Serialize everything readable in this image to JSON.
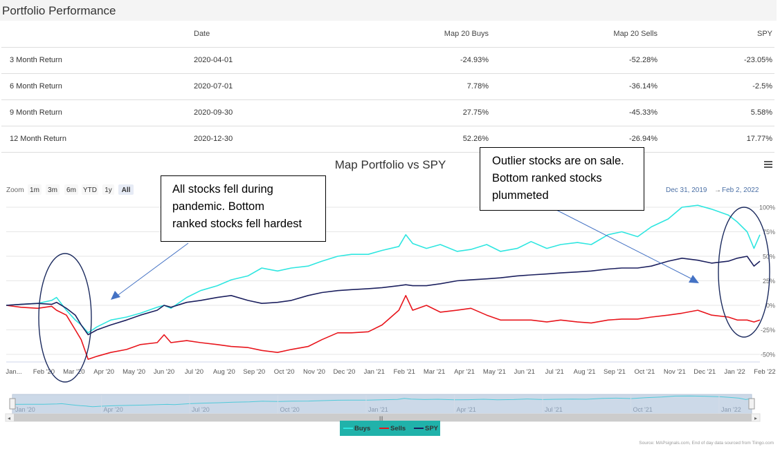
{
  "header": {
    "title": "Portfolio Performance"
  },
  "table": {
    "columns": [
      "",
      "Date",
      "Map 20 Buys",
      "Map 20 Sells",
      "SPY"
    ],
    "rows": [
      [
        "3 Month Return",
        "2020-04-01",
        "-24.93%",
        "-52.28%",
        "-23.05%"
      ],
      [
        "6 Month Return",
        "2020-07-01",
        "7.78%",
        "-36.14%",
        "-2.5%"
      ],
      [
        "9 Month Return",
        "2020-09-30",
        "27.75%",
        "-45.33%",
        "5.58%"
      ],
      [
        "12 Month Return",
        "2020-12-30",
        "52.26%",
        "-26.94%",
        "17.77%"
      ]
    ]
  },
  "zoom": {
    "label": "Zoom",
    "buttons": [
      "1m",
      "3m",
      "6m",
      "YTD",
      "1y",
      "All"
    ],
    "active": "All"
  },
  "date_range": {
    "from": "Dec 31, 2019",
    "arrow": "→",
    "to": "Feb 2, 2022"
  },
  "navigator_labels": [
    "Jan '20",
    "Apr '20",
    "Jul '20",
    "Oct '20",
    "Jan '21",
    "Apr '21",
    "Jul '21",
    "Oct '21",
    "Jan '22"
  ],
  "callouts": {
    "left": "All stocks fell during\npandemic. Bottom\nranked stocks fell hardest",
    "right": "Outlier stocks are on sale.\nBottom ranked stocks\nplummeted"
  },
  "credits": "Source: MAPsignals.com, End of day data sourced from Tiingo.com",
  "colors": {
    "buys": "#2ee6e0",
    "sells": "#e8141b",
    "spy": "#1b1f5e",
    "navigator_fill": "#ccd9e8",
    "active_zoom": "#e6ebf5"
  },
  "chart_data": {
    "type": "line",
    "title": "Map Portfolio vs SPY",
    "xlabel": "",
    "ylabel": "",
    "ylim": [
      -55,
      105
    ],
    "y_ticks": [
      100,
      75,
      50,
      25,
      0,
      -25,
      -50
    ],
    "y_tick_labels": [
      "100%",
      "75%",
      "50%",
      "25%",
      "0%",
      "-25%",
      "-50%"
    ],
    "x_ticks": [
      "Jan...",
      "Feb '20",
      "Mar '20",
      "Apr '20",
      "May '20",
      "Jun '20",
      "Jul '20",
      "Aug '20",
      "Sep '20",
      "Oct '20",
      "Nov '20",
      "Dec '20",
      "Jan '21",
      "Feb '21",
      "Mar '21",
      "Apr '21",
      "May '21",
      "Jun '21",
      "Jul '21",
      "Aug '21",
      "Sep '21",
      "Oct '21",
      "Nov '21",
      "Dec '21",
      "Jan '22",
      "Feb '22"
    ],
    "x": [
      "2019-12-31",
      "2020-01-15",
      "2020-02-01",
      "2020-02-15",
      "2020-02-20",
      "2020-03-01",
      "2020-03-10",
      "2020-03-16",
      "2020-03-23",
      "2020-04-01",
      "2020-04-15",
      "2020-05-01",
      "2020-05-15",
      "2020-06-01",
      "2020-06-08",
      "2020-06-15",
      "2020-07-01",
      "2020-07-15",
      "2020-08-01",
      "2020-08-15",
      "2020-09-01",
      "2020-09-15",
      "2020-10-01",
      "2020-10-15",
      "2020-11-01",
      "2020-11-15",
      "2020-12-01",
      "2020-12-15",
      "2021-01-01",
      "2021-01-15",
      "2021-02-01",
      "2021-02-08",
      "2021-02-15",
      "2021-03-01",
      "2021-03-15",
      "2021-04-01",
      "2021-04-15",
      "2021-05-01",
      "2021-05-15",
      "2021-06-01",
      "2021-06-15",
      "2021-07-01",
      "2021-07-15",
      "2021-08-01",
      "2021-08-15",
      "2021-09-01",
      "2021-09-15",
      "2021-10-01",
      "2021-10-15",
      "2021-11-01",
      "2021-11-15",
      "2021-12-01",
      "2021-12-15",
      "2022-01-01",
      "2022-01-10",
      "2022-01-20",
      "2022-01-27",
      "2022-02-02"
    ],
    "series": [
      {
        "name": "Buys",
        "values": [
          0,
          1,
          2,
          5,
          8,
          -5,
          -15,
          -20,
          -28,
          -22,
          -15,
          -12,
          -8,
          -2,
          0,
          -3,
          8,
          15,
          20,
          26,
          30,
          38,
          35,
          38,
          40,
          45,
          50,
          52,
          52,
          56,
          60,
          72,
          63,
          58,
          62,
          55,
          57,
          62,
          55,
          58,
          65,
          58,
          62,
          64,
          62,
          72,
          75,
          70,
          80,
          88,
          100,
          102,
          98,
          92,
          85,
          75,
          58,
          72
        ]
      },
      {
        "name": "Sells",
        "values": [
          0,
          -2,
          -3,
          -1,
          -5,
          -10,
          -25,
          -35,
          -55,
          -52,
          -48,
          -45,
          -40,
          -38,
          -30,
          -38,
          -36,
          -38,
          -40,
          -42,
          -43,
          -46,
          -48,
          -45,
          -42,
          -35,
          -28,
          -28,
          -27,
          -20,
          -5,
          10,
          -5,
          0,
          -7,
          -5,
          -3,
          -10,
          -15,
          -15,
          -15,
          -17,
          -15,
          -17,
          -18,
          -15,
          -14,
          -14,
          -12,
          -10,
          -8,
          -5,
          -10,
          -12,
          -15,
          -15,
          -17,
          -15
        ]
      },
      {
        "name": "SPY",
        "values": [
          0,
          1,
          2,
          1,
          3,
          -3,
          -10,
          -20,
          -30,
          -25,
          -20,
          -15,
          -10,
          -5,
          0,
          -2,
          3,
          5,
          8,
          10,
          5,
          2,
          3,
          5,
          10,
          13,
          15,
          16,
          17,
          18,
          20,
          21,
          20,
          20,
          22,
          25,
          26,
          27,
          28,
          30,
          31,
          32,
          33,
          34,
          35,
          37,
          38,
          38,
          40,
          45,
          48,
          46,
          43,
          45,
          48,
          50,
          40,
          45
        ]
      }
    ]
  }
}
